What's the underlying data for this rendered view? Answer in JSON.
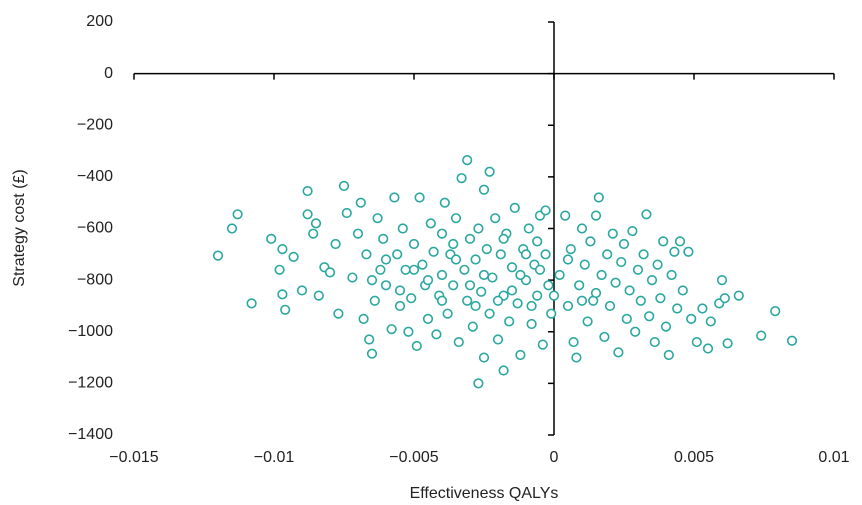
{
  "chart_data": {
    "type": "scatter",
    "x_label": "Effectiveness QALYs",
    "y_label": "Strategy cost (£)",
    "color": "#2aa8a0",
    "xlim": [
      -0.015,
      0.01
    ],
    "ylim": [
      -1400,
      200
    ],
    "xticks": [
      {
        "value": -0.015,
        "label": "−0.015"
      },
      {
        "value": -0.01,
        "label": "−0.01"
      },
      {
        "value": -0.005,
        "label": "−0.005"
      },
      0,
      0.005,
      0.01
    ],
    "yticks": [
      200,
      0,
      {
        "value": -200,
        "label": "−200"
      },
      {
        "value": -400,
        "label": "−400"
      },
      {
        "value": -600,
        "label": "−600"
      },
      {
        "value": -800,
        "label": "−800"
      },
      {
        "value": -1000,
        "label": "−1000"
      },
      {
        "value": -1200,
        "label": "−1200"
      },
      {
        "value": -1400,
        "label": "−1400"
      }
    ],
    "x": [
      -0.012,
      -0.0113,
      -0.0115,
      -0.0108,
      -0.0101,
      -0.0097,
      -0.0098,
      -0.0097,
      -0.0096,
      -0.0093,
      -0.009,
      -0.0088,
      -0.0088,
      -0.0086,
      -0.0085,
      -0.0084,
      -0.0082,
      -0.008,
      -0.0078,
      -0.0077,
      -0.0075,
      -0.0074,
      -0.0072,
      -0.007,
      -0.0069,
      -0.0068,
      -0.0067,
      -0.0066,
      -0.0065,
      -0.0064,
      -0.0063,
      -0.0062,
      -0.0061,
      -0.006,
      -0.0058,
      -0.0057,
      -0.0056,
      -0.0055,
      -0.0054,
      -0.0053,
      -0.0052,
      -0.0051,
      -0.005,
      -0.0049,
      -0.0048,
      -0.0047,
      -0.0046,
      -0.0045,
      -0.0044,
      -0.0043,
      -0.0042,
      -0.0041,
      -0.004,
      -0.004,
      -0.0039,
      -0.0038,
      -0.0037,
      -0.0036,
      -0.0035,
      -0.0034,
      -0.0033,
      -0.0032,
      -0.0031,
      -0.0031,
      -0.003,
      -0.0029,
      -0.0028,
      -0.0027,
      -0.0027,
      -0.0026,
      -0.0025,
      -0.0025,
      -0.0024,
      -0.0023,
      -0.0023,
      -0.0022,
      -0.0021,
      -0.002,
      -0.0019,
      -0.0018,
      -0.0018,
      -0.0017,
      -0.0016,
      -0.0015,
      -0.0014,
      -0.0013,
      -0.0012,
      -0.0011,
      -0.001,
      -0.0009,
      -0.0008,
      -0.0007,
      -0.0006,
      -0.0005,
      -0.0004,
      -0.0003,
      -0.0002,
      -0.0001,
      -0.0003,
      -0.0006,
      0.0002,
      0.0004,
      0.0005,
      0.0006,
      0.0007,
      0.0008,
      0.0009,
      0.001,
      0.0011,
      0.0012,
      0.0013,
      0.0014,
      0.0015,
      0.0016,
      0.0017,
      0.0018,
      0.0019,
      0.002,
      0.0021,
      0.0022,
      0.0023,
      0.0024,
      0.0025,
      0.0026,
      0.0027,
      0.0028,
      0.0029,
      0.003,
      0.0031,
      0.0032,
      0.0033,
      0.0034,
      0.0035,
      0.0036,
      0.0037,
      0.0038,
      0.0039,
      0.004,
      0.0041,
      0.0042,
      0.0043,
      0.0044,
      0.0045,
      0.0046,
      0.0048,
      0.0049,
      0.0051,
      0.0053,
      0.0055,
      0.0056,
      0.0059,
      0.006,
      0.0062,
      0.0061,
      0.0066,
      0.0074,
      0.0079,
      0.0085,
      -0.0045,
      -0.0035,
      -0.0025,
      -0.0015,
      -0.0005,
      0.0005,
      -0.004,
      -0.003,
      -0.002,
      -0.001,
      -0.005,
      -0.006,
      0.0015,
      -0.0028,
      -0.0018,
      -0.0008,
      0.0,
      -0.0055,
      -0.0065,
      -0.0036,
      -0.0012,
      0.001
    ],
    "y": [
      -705,
      -545,
      -600,
      -890,
      -640,
      -680,
      -760,
      -855,
      -915,
      -710,
      -840,
      -455,
      -545,
      -620,
      -580,
      -860,
      -750,
      -770,
      -660,
      -930,
      -435,
      -540,
      -790,
      -620,
      -500,
      -950,
      -700,
      -1030,
      -1085,
      -880,
      -560,
      -760,
      -640,
      -820,
      -990,
      -480,
      -700,
      -900,
      -600,
      -760,
      -1000,
      -870,
      -660,
      -1055,
      -480,
      -740,
      -820,
      -950,
      -580,
      -690,
      -1010,
      -860,
      -620,
      -780,
      -500,
      -930,
      -700,
      -820,
      -560,
      -1040,
      -405,
      -760,
      -335,
      -880,
      -640,
      -980,
      -720,
      -1200,
      -600,
      -845,
      -450,
      -1100,
      -680,
      -380,
      -930,
      -790,
      -560,
      -1030,
      -700,
      -1150,
      -860,
      -620,
      -960,
      -750,
      -520,
      -890,
      -1090,
      -680,
      -800,
      -600,
      -970,
      -740,
      -860,
      -550,
      -1050,
      -700,
      -820,
      -930,
      -530,
      -650,
      -780,
      -550,
      -900,
      -680,
      -1040,
      -1100,
      -820,
      -600,
      -740,
      -960,
      -650,
      -880,
      -550,
      -480,
      -780,
      -1020,
      -700,
      -900,
      -620,
      -810,
      -1080,
      -730,
      -660,
      -950,
      -840,
      -610,
      -1000,
      -760,
      -880,
      -700,
      -545,
      -940,
      -800,
      -1040,
      -740,
      -870,
      -650,
      -980,
      -1090,
      -780,
      -690,
      -910,
      -650,
      -840,
      -690,
      -950,
      -1040,
      -910,
      -1065,
      -960,
      -890,
      -800,
      -1045,
      -870,
      -860,
      -1015,
      -920,
      -1035,
      -800,
      -720,
      -780,
      -840,
      -760,
      -720,
      -880,
      -820,
      -880,
      -700,
      -760,
      -720,
      -850,
      -900,
      -640,
      -900,
      -860,
      -840,
      -800,
      -660,
      -780,
      -880
    ]
  }
}
